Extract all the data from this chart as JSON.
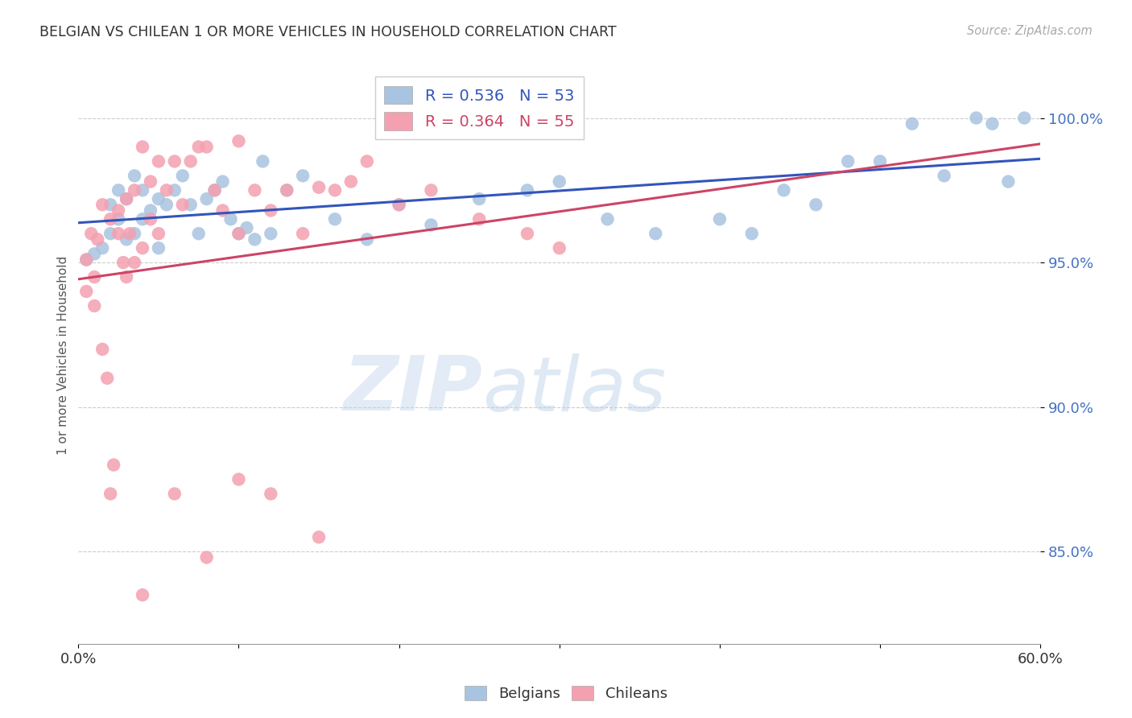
{
  "title": "BELGIAN VS CHILEAN 1 OR MORE VEHICLES IN HOUSEHOLD CORRELATION CHART",
  "source": "Source: ZipAtlas.com",
  "ylabel": "1 or more Vehicles in Household",
  "ytick_labels": [
    "85.0%",
    "90.0%",
    "95.0%",
    "100.0%"
  ],
  "ytick_values": [
    0.85,
    0.9,
    0.95,
    1.0
  ],
  "xmin": 0.0,
  "xmax": 0.6,
  "ymin": 0.818,
  "ymax": 1.018,
  "legend_blue": "R = 0.536   N = 53",
  "legend_pink": "R = 0.364   N = 55",
  "watermark_zip": "ZIP",
  "watermark_atlas": "atlas",
  "belgian_color": "#a8c4e0",
  "chilean_color": "#f4a0b0",
  "trendline_blue": "#3355bb",
  "trendline_pink": "#cc4466",
  "belgians_x": [
    0.005,
    0.01,
    0.015,
    0.02,
    0.02,
    0.025,
    0.025,
    0.03,
    0.03,
    0.035,
    0.035,
    0.04,
    0.04,
    0.045,
    0.05,
    0.05,
    0.055,
    0.06,
    0.065,
    0.07,
    0.075,
    0.08,
    0.085,
    0.09,
    0.095,
    0.1,
    0.105,
    0.11,
    0.115,
    0.12,
    0.13,
    0.14,
    0.16,
    0.18,
    0.2,
    0.22,
    0.25,
    0.28,
    0.3,
    0.33,
    0.36,
    0.4,
    0.44,
    0.48,
    0.52,
    0.56,
    0.57,
    0.58,
    0.59,
    0.54,
    0.5,
    0.46,
    0.42
  ],
  "belgians_y": [
    0.951,
    0.953,
    0.955,
    0.96,
    0.97,
    0.965,
    0.975,
    0.958,
    0.972,
    0.96,
    0.98,
    0.965,
    0.975,
    0.968,
    0.955,
    0.972,
    0.97,
    0.975,
    0.98,
    0.97,
    0.96,
    0.972,
    0.975,
    0.978,
    0.965,
    0.96,
    0.962,
    0.958,
    0.985,
    0.96,
    0.975,
    0.98,
    0.965,
    0.958,
    0.97,
    0.963,
    0.972,
    0.975,
    0.978,
    0.965,
    0.96,
    0.965,
    0.975,
    0.985,
    0.998,
    1.0,
    0.998,
    0.978,
    1.0,
    0.98,
    0.985,
    0.97,
    0.96
  ],
  "chileans_x": [
    0.005,
    0.005,
    0.008,
    0.01,
    0.01,
    0.012,
    0.015,
    0.015,
    0.018,
    0.02,
    0.02,
    0.022,
    0.025,
    0.025,
    0.028,
    0.03,
    0.03,
    0.032,
    0.035,
    0.035,
    0.04,
    0.04,
    0.045,
    0.045,
    0.05,
    0.05,
    0.055,
    0.06,
    0.065,
    0.07,
    0.075,
    0.08,
    0.085,
    0.09,
    0.1,
    0.1,
    0.11,
    0.12,
    0.13,
    0.14,
    0.15,
    0.16,
    0.17,
    0.18,
    0.2,
    0.22,
    0.25,
    0.28,
    0.3,
    0.15,
    0.12,
    0.1,
    0.08,
    0.06,
    0.04
  ],
  "chileans_y": [
    0.951,
    0.94,
    0.96,
    0.945,
    0.935,
    0.958,
    0.92,
    0.97,
    0.91,
    0.965,
    0.87,
    0.88,
    0.968,
    0.96,
    0.95,
    0.972,
    0.945,
    0.96,
    0.975,
    0.95,
    0.99,
    0.955,
    0.978,
    0.965,
    0.985,
    0.96,
    0.975,
    0.985,
    0.97,
    0.985,
    0.99,
    0.99,
    0.975,
    0.968,
    0.96,
    0.992,
    0.975,
    0.968,
    0.975,
    0.96,
    0.976,
    0.975,
    0.978,
    0.985,
    0.97,
    0.975,
    0.965,
    0.96,
    0.955,
    0.855,
    0.87,
    0.875,
    0.848,
    0.87,
    0.835
  ]
}
